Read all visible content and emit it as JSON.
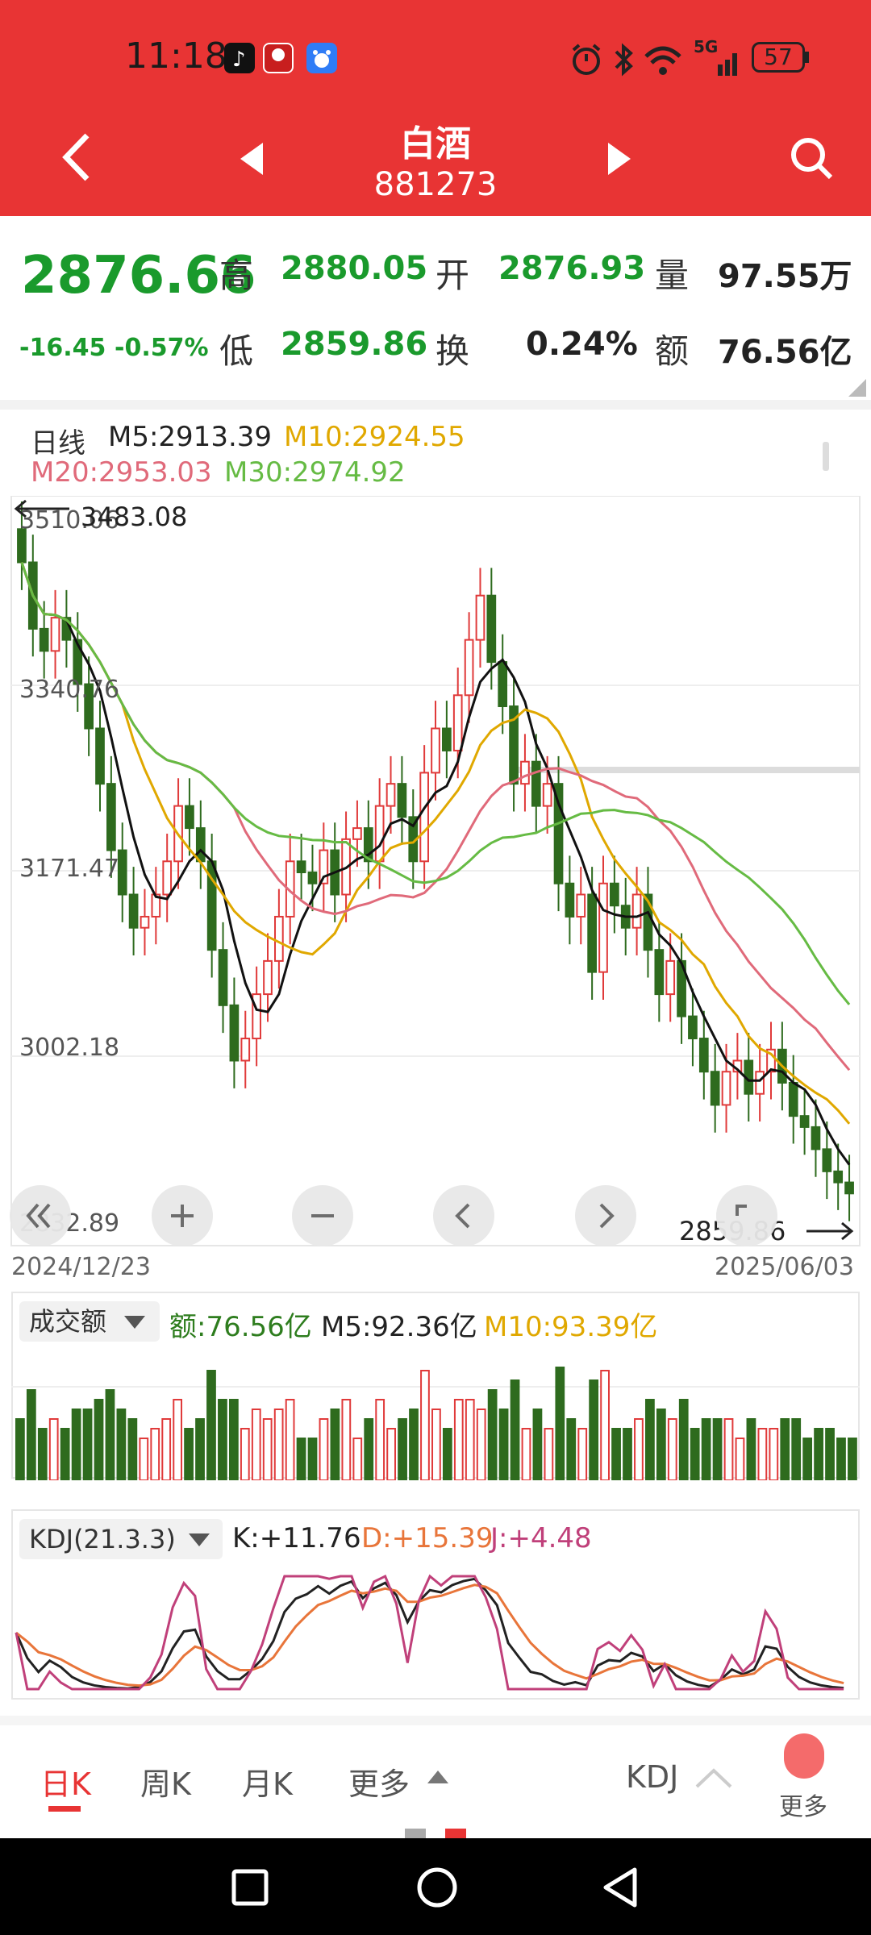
{
  "status_bar": {
    "time": "11:18",
    "battery": "57",
    "signal_text": "5G"
  },
  "header": {
    "title": "白酒",
    "code": "881273"
  },
  "quote": {
    "price": "2876.66",
    "change": "-16.45",
    "change_pct": "-0.57%",
    "high_label": "高",
    "high": "2880.05",
    "low_label": "低",
    "low": "2859.86",
    "open_label": "开",
    "open": "2876.93",
    "turnover_label": "换",
    "turnover": "0.24%",
    "volume_label": "量",
    "volume": "97.55万",
    "amount_label": "额",
    "amount": "76.56亿"
  },
  "kline": {
    "period_label": "日线",
    "ma5": "M5:2913.39",
    "ma10": "M10:2924.55",
    "ma20": "M20:2953.03",
    "ma30": "M30:2974.92",
    "max_marker": "3483.08",
    "min_marker": "2859.86",
    "y_labels": [
      "3510.06",
      "3340.76",
      "3171.47",
      "3002.18",
      "2832.89"
    ],
    "start_date": "2024/12/23",
    "end_date": "2025/06/03",
    "colors": {
      "up": "#e03a3a",
      "down": "#2e6b1e",
      "ma5": "#111111",
      "ma10": "#e0a800",
      "ma20": "#e06a7a",
      "ma30": "#66bb44"
    }
  },
  "volume_panel": {
    "selector": "成交额",
    "amount": "额:76.56亿",
    "ma5": "M5:92.36亿",
    "ma10": "M10:93.39亿"
  },
  "kdj_panel": {
    "selector": "KDJ(21.3.3)",
    "k": "K:+11.76",
    "d": "D:+15.39",
    "j": "J:+4.48"
  },
  "tabs": {
    "day": "日K",
    "week": "周K",
    "month": "月K",
    "more": "更多",
    "indicator": "KDJ",
    "more2": "更多"
  },
  "chart_data": {
    "type": "candlestick",
    "title": "",
    "x_range": [
      "2024/12/23",
      "2025/06/03"
    ],
    "ylim": [
      2832.89,
      3510.06
    ],
    "y_ticks": [
      3510.06,
      3340.76,
      3171.47,
      3002.18,
      2832.89
    ],
    "highest": 3483.08,
    "lowest": 2859.86,
    "last_close": 2876.66,
    "series": [
      {
        "name": "M5",
        "last": 2913.39
      },
      {
        "name": "M10",
        "last": 2924.55
      },
      {
        "name": "M20",
        "last": 2953.03
      },
      {
        "name": "M30",
        "last": 2974.92
      }
    ],
    "close_trace": [
      3450,
      3390,
      3370,
      3400,
      3380,
      3340,
      3300,
      3250,
      3190,
      3150,
      3120,
      3130,
      3150,
      3180,
      3230,
      3210,
      3180,
      3100,
      3050,
      3000,
      3020,
      3060,
      3090,
      3130,
      3180,
      3170,
      3160,
      3190,
      3150,
      3200,
      3210,
      3180,
      3230,
      3250,
      3220,
      3180,
      3260,
      3300,
      3280,
      3330,
      3380,
      3420,
      3360,
      3320,
      3250,
      3270,
      3230,
      3250,
      3160,
      3130,
      3150,
      3080,
      3160,
      3140,
      3120,
      3150,
      3100,
      3060,
      3090,
      3040,
      3020,
      2990,
      2960,
      2990,
      3000,
      2970,
      2990,
      3010,
      2980,
      2950,
      2940,
      2920,
      2900,
      2890,
      2880
    ]
  }
}
